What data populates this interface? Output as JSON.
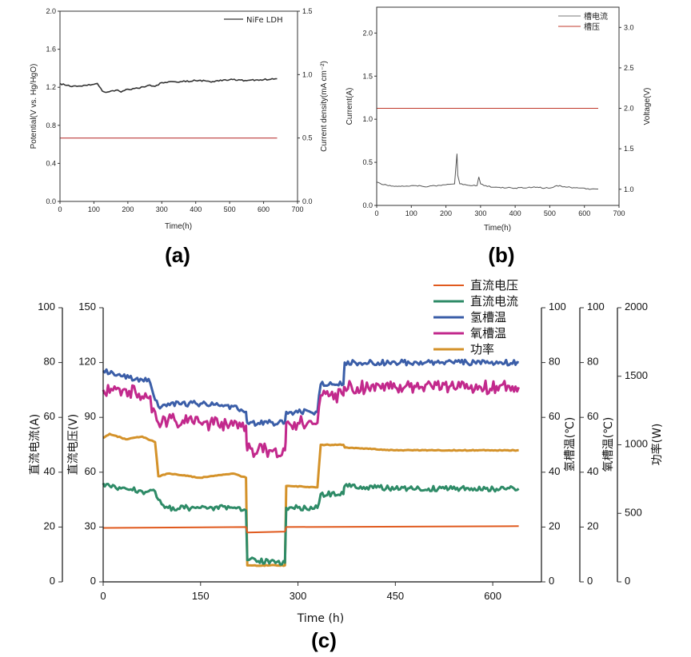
{
  "chart_data": [
    {
      "panel_label": "(a)",
      "type": "line",
      "xlabel": "Time(h)",
      "ylabel": "Potential(V vs. Hg/HgO)",
      "y2label": "Current density(mA cm⁻²)",
      "xlim": [
        0,
        700
      ],
      "ylim": [
        0,
        2.0
      ],
      "y2lim": [
        0,
        1.5
      ],
      "xticks": [
        "0",
        "100",
        "200",
        "300",
        "400",
        "500",
        "600",
        "700"
      ],
      "yticks": [
        "0.0",
        "0.4",
        "0.8",
        "1.2",
        "1.6",
        "2.0"
      ],
      "y2ticks": [
        "0.0",
        "0.5",
        "1.0",
        "1.5"
      ],
      "legend": [
        "NiFe LDH"
      ],
      "series": [
        {
          "name": "NiFe LDH potential",
          "axis": "left",
          "color": "#333333",
          "x": [
            0,
            20,
            50,
            80,
            110,
            125,
            140,
            165,
            180,
            200,
            230,
            260,
            280,
            300,
            330,
            360,
            400,
            450,
            500,
            550,
            600,
            640
          ],
          "y": [
            1.24,
            1.22,
            1.21,
            1.22,
            1.24,
            1.16,
            1.15,
            1.17,
            1.15,
            1.18,
            1.19,
            1.22,
            1.21,
            1.25,
            1.26,
            1.26,
            1.27,
            1.26,
            1.28,
            1.27,
            1.28,
            1.29
          ]
        },
        {
          "name": "current density",
          "axis": "right",
          "color": "#b22222",
          "x": [
            0,
            640
          ],
          "y": [
            0.5,
            0.5
          ]
        }
      ]
    },
    {
      "panel_label": "(b)",
      "type": "line",
      "xlabel": "Time(h)",
      "ylabel": "Current(A)",
      "y2label": "Voltage(V)",
      "xlim": [
        0,
        700
      ],
      "ylim": [
        0,
        2.3
      ],
      "y2lim": [
        0.8,
        3.25
      ],
      "xticks": [
        "0",
        "100",
        "200",
        "300",
        "400",
        "500",
        "600",
        "700"
      ],
      "yticks": [
        "0.0",
        "0.5",
        "1.0",
        "1.5",
        "2.0"
      ],
      "y2ticks": [
        "1.0",
        "1.5",
        "2.0",
        "2.5",
        "3.0"
      ],
      "legend": [
        "槽电流",
        "槽压"
      ],
      "series": [
        {
          "name": "槽电流",
          "axis": "left",
          "color": "#555555",
          "x": [
            0,
            20,
            60,
            100,
            150,
            200,
            225,
            232,
            234,
            240,
            250,
            290,
            295,
            300,
            320,
            350,
            400,
            450,
            500,
            520,
            560,
            600,
            620,
            640
          ],
          "y": [
            0.27,
            0.24,
            0.22,
            0.23,
            0.22,
            0.24,
            0.25,
            0.6,
            0.35,
            0.25,
            0.24,
            0.23,
            0.33,
            0.25,
            0.22,
            0.21,
            0.2,
            0.21,
            0.2,
            0.23,
            0.21,
            0.2,
            0.19,
            0.19
          ]
        },
        {
          "name": "槽压",
          "axis": "right",
          "color": "#c0392b",
          "x": [
            0,
            640
          ],
          "y": [
            2.0,
            2.0
          ]
        }
      ]
    },
    {
      "panel_label": "(c)",
      "type": "line",
      "xlabel": "Time (h)",
      "xlim": [
        0,
        675
      ],
      "xticks": [
        "0",
        "150",
        "300",
        "450",
        "600"
      ],
      "axes": [
        {
          "label": "直流电流(A)",
          "range": [
            0,
            100
          ],
          "ticks": [
            "0",
            "20",
            "40",
            "60",
            "80",
            "100"
          ]
        },
        {
          "label": "直流电压(V)",
          "range": [
            0,
            150
          ],
          "ticks": [
            "0",
            "30",
            "60",
            "90",
            "120",
            "150"
          ]
        },
        {
          "label": "氢槽温(℃)",
          "range": [
            0,
            100
          ],
          "ticks": [
            "0",
            "20",
            "40",
            "60",
            "80",
            "100"
          ]
        },
        {
          "label": "氧槽温(℃)",
          "range": [
            0,
            100
          ],
          "ticks": [
            "0",
            "20",
            "40",
            "60",
            "80",
            "100"
          ]
        },
        {
          "label": "功率(W)",
          "range": [
            0,
            2000
          ],
          "ticks": [
            "0",
            "500",
            "1000",
            "1500",
            "2000"
          ]
        }
      ],
      "legend": [
        "直流电压",
        "直流电流",
        "氢槽温",
        "氧槽温",
        "功率"
      ],
      "series": [
        {
          "name": "氢槽温",
          "color": "#3b5ea8",
          "band": 2,
          "x": [
            0,
            10,
            30,
            50,
            70,
            85,
            100,
            150,
            200,
            220,
            222,
            280,
            282,
            330,
            335,
            370,
            372,
            450,
            550,
            640
          ],
          "y": [
            77,
            76,
            75,
            74,
            74,
            64,
            65,
            65,
            64,
            62,
            58,
            58,
            62,
            62,
            72,
            72,
            80,
            80,
            80,
            80
          ]
        },
        {
          "name": "氧槽温",
          "color": "#c2298c",
          "band": 5,
          "x": [
            0,
            10,
            30,
            50,
            70,
            85,
            100,
            150,
            200,
            220,
            222,
            280,
            282,
            330,
            335,
            370,
            372,
            450,
            550,
            640
          ],
          "y": [
            70,
            69,
            70,
            69,
            67,
            58,
            59,
            58,
            57,
            57,
            48,
            48,
            58,
            58,
            68,
            68,
            71,
            71,
            71,
            71
          ]
        },
        {
          "name": "功率",
          "color": "#d4922a",
          "band": 6,
          "x": [
            0,
            10,
            35,
            60,
            80,
            85,
            100,
            150,
            200,
            220,
            222,
            280,
            282,
            330,
            335,
            370,
            372,
            450,
            550,
            640
          ],
          "y": [
            1050,
            1080,
            1040,
            1060,
            1020,
            770,
            790,
            760,
            790,
            760,
            120,
            120,
            700,
            690,
            1000,
            1000,
            980,
            960,
            960,
            960
          ]
        },
        {
          "name": "直流电流",
          "color": "#2e8b67",
          "band": 2,
          "x": [
            0,
            10,
            35,
            60,
            80,
            85,
            100,
            150,
            200,
            220,
            222,
            280,
            282,
            330,
            335,
            370,
            372,
            450,
            550,
            640
          ],
          "y": [
            36,
            35,
            34,
            33,
            33,
            30,
            27,
            27,
            27,
            26,
            8,
            7,
            27,
            27,
            32,
            32,
            35,
            34,
            34,
            34
          ]
        },
        {
          "name": "直流电压",
          "color": "#e05a1e",
          "band": 0,
          "x": [
            0,
            220,
            222,
            280,
            282,
            640
          ],
          "y": [
            29.5,
            30,
            27,
            27.5,
            30,
            30.5
          ]
        }
      ]
    }
  ]
}
